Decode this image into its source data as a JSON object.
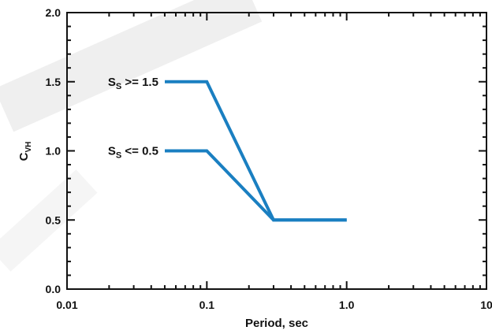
{
  "chart_data": {
    "type": "line",
    "xlabel": "Period, sec",
    "ylabel": {
      "main": "C",
      "sub": "VH"
    },
    "xscale": "log",
    "xlim": [
      0.01,
      10
    ],
    "ylim": [
      0.0,
      2.0
    ],
    "xticks": [
      "0.01",
      "0.1",
      "1.0",
      "10"
    ],
    "xtick_values": [
      0.01,
      0.1,
      1.0,
      10
    ],
    "yticks": [
      "0.0",
      "0.5",
      "1.0",
      "1.5",
      "2.0"
    ],
    "ytick_values": [
      0.0,
      0.5,
      1.0,
      1.5,
      2.0
    ],
    "grid": false,
    "line_color": "#1a7fc1",
    "series": [
      {
        "label": {
          "main": "S",
          "sub": "S",
          "rest": " >= 1.5"
        },
        "x": [
          0.05,
          0.1,
          0.3,
          1.0
        ],
        "y": [
          1.5,
          1.5,
          0.5,
          0.5
        ]
      },
      {
        "label": {
          "main": "S",
          "sub": "S",
          "rest": " <= 0.5"
        },
        "x": [
          0.05,
          0.1,
          0.3,
          1.0
        ],
        "y": [
          1.0,
          1.0,
          0.5,
          0.5
        ]
      }
    ]
  }
}
